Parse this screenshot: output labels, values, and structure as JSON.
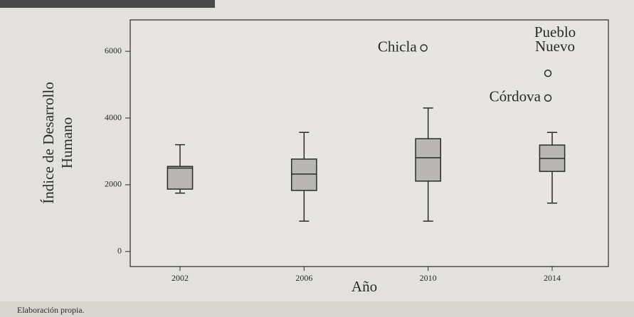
{
  "chart_data": {
    "type": "box",
    "y_label": [
      "Índice de Desarrollo",
      "Humano"
    ],
    "x_label": "Año",
    "categories": [
      "2002",
      "2006",
      "2010",
      "2014"
    ],
    "min": [
      1750,
      910,
      910,
      1450
    ],
    "q1": [
      1870,
      1830,
      2110,
      2400
    ],
    "median": [
      2500,
      2320,
      2810,
      2790
    ],
    "q3": [
      2550,
      2770,
      3380,
      3190
    ],
    "max": [
      3200,
      3570,
      4300,
      3570
    ],
    "outliers": [
      {
        "category": 2,
        "value": 6100,
        "label": "Chicla"
      },
      {
        "category": 3,
        "value": 5340,
        "label": [
          "Pueblo",
          "Nuevo"
        ]
      },
      {
        "category": 3,
        "value": 4600,
        "label": "Córdova"
      }
    ],
    "color": "#b9b7b4",
    "ylim": [
      -450,
      6940
    ],
    "yticks": [
      0,
      2000,
      4000,
      6000
    ]
  },
  "source": "Elaboración propia."
}
